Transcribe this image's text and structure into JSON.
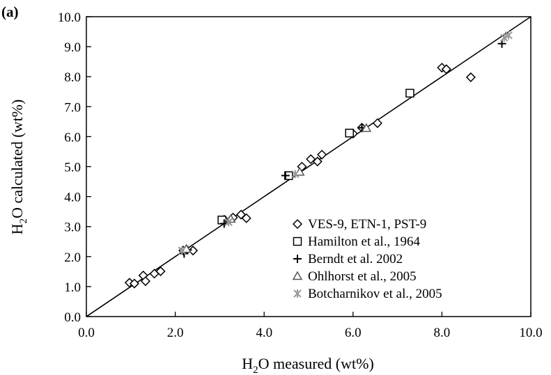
{
  "chart_data": {
    "type": "scatter",
    "panel_label": "(a)",
    "xlabel": {
      "pre": "H",
      "sub": "2",
      "post": "O measured (wt%)"
    },
    "ylabel": {
      "pre": "H",
      "sub": "2",
      "post": "O calculated (wt%)"
    },
    "xlim": [
      0,
      10
    ],
    "ylim": [
      0,
      10
    ],
    "xticks": [
      "0.0",
      "2.0",
      "4.0",
      "6.0",
      "8.0",
      "10.0"
    ],
    "yticks": [
      "0.0",
      "1.0",
      "2.0",
      "3.0",
      "4.0",
      "5.0",
      "6.0",
      "7.0",
      "8.0",
      "9.0",
      "10.0"
    ],
    "grid": false,
    "legend_position": "bottom-right",
    "reference_line": {
      "from": [
        0,
        0
      ],
      "to": [
        10,
        10
      ]
    },
    "series": [
      {
        "name": "VES-9, ETN-1, PST-9",
        "marker": "diamond",
        "color": "#000000",
        "points": [
          [
            0.97,
            1.13
          ],
          [
            1.08,
            1.1
          ],
          [
            1.28,
            1.37
          ],
          [
            1.33,
            1.18
          ],
          [
            1.53,
            1.43
          ],
          [
            1.67,
            1.51
          ],
          [
            2.18,
            2.2
          ],
          [
            2.4,
            2.2
          ],
          [
            3.1,
            3.23
          ],
          [
            3.3,
            3.3
          ],
          [
            3.48,
            3.4
          ],
          [
            3.6,
            3.28
          ],
          [
            4.85,
            5.0
          ],
          [
            5.05,
            5.25
          ],
          [
            5.2,
            5.17
          ],
          [
            5.3,
            5.4
          ],
          [
            6.0,
            6.1
          ],
          [
            6.2,
            6.3
          ],
          [
            6.55,
            6.45
          ],
          [
            8.0,
            8.3
          ],
          [
            8.1,
            8.25
          ],
          [
            8.65,
            7.98
          ]
        ]
      },
      {
        "name": "Hamilton et al., 1964",
        "marker": "square",
        "color": "#000000",
        "points": [
          [
            3.05,
            3.22
          ],
          [
            4.55,
            4.7
          ],
          [
            5.92,
            6.12
          ],
          [
            7.28,
            7.45
          ]
        ]
      },
      {
        "name": "Berndt et al. 2002",
        "marker": "plus",
        "color": "#000000",
        "points": [
          [
            2.2,
            2.1
          ],
          [
            2.28,
            2.22
          ],
          [
            3.1,
            3.1
          ],
          [
            4.48,
            4.7
          ],
          [
            6.2,
            6.3
          ],
          [
            9.35,
            9.1
          ]
        ]
      },
      {
        "name": "Ohlhorst et al., 2005",
        "marker": "triangle",
        "color": "#555555",
        "points": [
          [
            2.25,
            2.25
          ],
          [
            3.25,
            3.25
          ],
          [
            4.8,
            4.82
          ],
          [
            6.3,
            6.28
          ]
        ]
      },
      {
        "name": "Botcharnikov et al., 2005",
        "marker": "asterisk",
        "color": "#999999",
        "points": [
          [
            2.15,
            2.2
          ],
          [
            3.2,
            3.15
          ],
          [
            4.7,
            4.75
          ],
          [
            9.4,
            9.3
          ],
          [
            9.5,
            9.38
          ]
        ]
      }
    ]
  }
}
